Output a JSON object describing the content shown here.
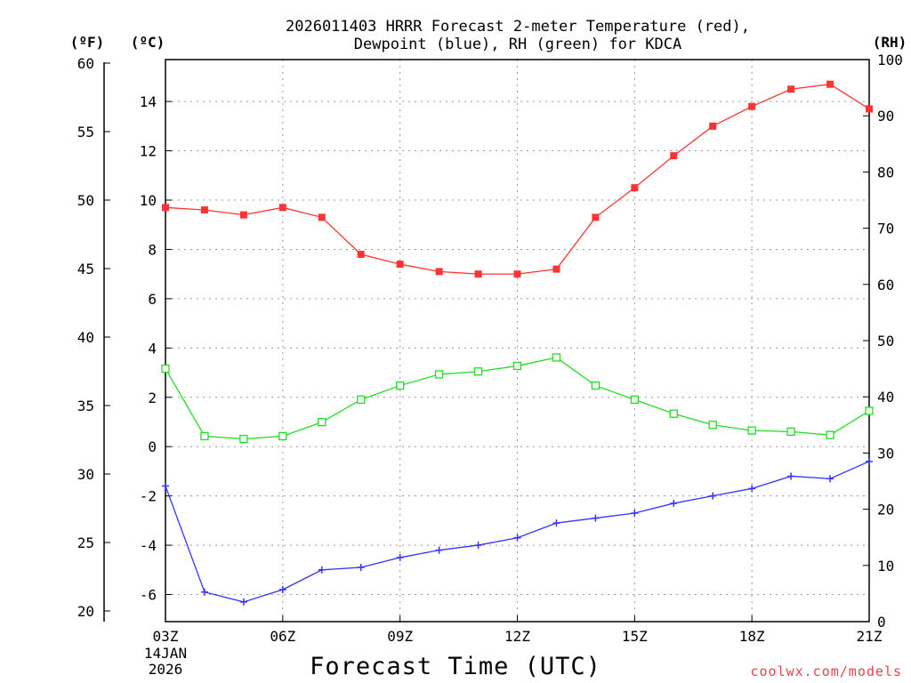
{
  "chart_data": {
    "type": "line",
    "title_line1": "2026011403 HRRR Forecast 2-meter Temperature (red),",
    "title_line2": "Dewpoint (blue), RH (green) for KDCA",
    "xlabel": "Forecast Time (UTC)",
    "date_line1": "14JAN",
    "date_line2": "2026",
    "credit": "coolwx.com/models",
    "units": {
      "fahrenheit": "(ºF)",
      "celsius": "(ºC)",
      "rh": "(RH)"
    },
    "x_hours": [
      3,
      4,
      5,
      6,
      7,
      8,
      9,
      10,
      11,
      12,
      13,
      14,
      15,
      16,
      17,
      18,
      19,
      20,
      21
    ],
    "x_ticks": [
      {
        "hour": 3,
        "label": "03Z"
      },
      {
        "hour": 6,
        "label": "06Z"
      },
      {
        "hour": 9,
        "label": "09Z"
      },
      {
        "hour": 12,
        "label": "12Z"
      },
      {
        "hour": 15,
        "label": "15Z"
      },
      {
        "hour": 18,
        "label": "18Z"
      },
      {
        "hour": 21,
        "label": "21Z"
      }
    ],
    "xlim": [
      3,
      21
    ],
    "ylim_c": [
      -7.1,
      15.7
    ],
    "ylim_rh": [
      0,
      100
    ],
    "y_ticks_c": [
      "-6",
      "-4",
      "-2",
      "0",
      "2",
      "4",
      "6",
      "8",
      "10",
      "12",
      "14"
    ],
    "y_ticks_f": [
      "20",
      "25",
      "30",
      "35",
      "40",
      "45",
      "50",
      "55",
      "60"
    ],
    "y_ticks_rh": [
      "0",
      "10",
      "20",
      "30",
      "40",
      "50",
      "60",
      "70",
      "80",
      "90",
      "100"
    ],
    "grid": true,
    "series": [
      {
        "name": "Temperature",
        "unit": "C",
        "color": "#ff3333",
        "marker": "filled-square",
        "values": [
          9.7,
          9.6,
          9.4,
          9.7,
          9.3,
          7.8,
          7.4,
          7.1,
          7.0,
          7.0,
          7.2,
          9.3,
          10.5,
          11.8,
          13.0,
          13.8,
          14.5,
          14.7,
          13.7
        ]
      },
      {
        "name": "Dewpoint",
        "unit": "C",
        "color": "#3333ff",
        "marker": "plus",
        "values": [
          -1.6,
          -5.9,
          -6.3,
          -5.8,
          -5.0,
          -4.9,
          -4.5,
          -4.2,
          -4.0,
          -3.7,
          -3.1,
          -2.9,
          -2.7,
          -2.3,
          -2.0,
          -1.7,
          -1.2,
          -1.3,
          -0.6
        ]
      },
      {
        "name": "RH",
        "unit": "%",
        "color": "#22dd22",
        "marker": "open-square",
        "values": [
          45,
          33,
          32.5,
          33,
          35.5,
          39.5,
          42,
          44,
          44.5,
          45.5,
          47,
          42,
          39.5,
          37,
          35,
          34,
          33.8,
          33.2,
          37.5
        ]
      }
    ]
  }
}
